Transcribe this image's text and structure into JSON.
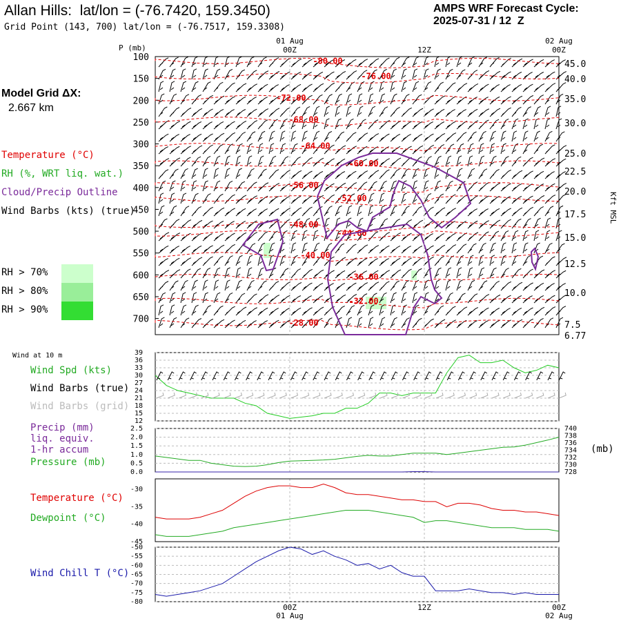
{
  "header": {
    "title": "Allan Hills:  lat/lon = (-76.7420, 159.3450)",
    "grid_point": "Grid Point (143, 700) lat/lon = (-76.7517, 159.3308)",
    "cycle_label": "AMPS WRF Forecast Cycle:",
    "cycle_value": "2025-07-31 / 12  Z"
  },
  "model": {
    "grid_label": "Model Grid ΔX:",
    "grid_value": "2.667 km"
  },
  "time_axis": {
    "top_dates": [
      "01 Aug",
      "02 Aug"
    ],
    "ticks": [
      "00Z",
      "12Z",
      "00Z"
    ],
    "bottom_dates": [
      "01 Aug",
      "02 Aug"
    ]
  },
  "legend": {
    "temperature": "Temperature (°C)",
    "rh": "RH (%, WRT liq. wat.)",
    "cloud": "Cloud/Precip Outline",
    "wind": "Wind Barbs (kts) (true)",
    "rh70": "RH > 70%",
    "rh80": "RH > 80%",
    "rh90": "RH > 90%",
    "colors": {
      "temp": "#e00000",
      "rh": "#22aa22",
      "cloud": "#7a2a9a",
      "rh70": "#ccffcc",
      "rh80": "#99ee99",
      "rh90": "#33dd33"
    }
  },
  "panels": {
    "wind10m_title": "Wind at 10 m",
    "wind_spd": "Wind Spd (kts)",
    "wind_barbs_true": "Wind Barbs (true)",
    "wind_barbs_grid": "Wind Barbs (grid)",
    "precip": "Precip (mm)",
    "precip2": "liq. equiv.",
    "precip3": "1-hr accum",
    "pressure": "Pressure (mb)",
    "pressure_unit": "(mb)",
    "temp": "Temperature (°C)",
    "dew": "Dewpoint (°C)",
    "windchill": "Wind Chill T (°C)"
  },
  "chart_data": [
    {
      "type": "heatmap",
      "name_ref": "vertical cross-section",
      "ylabel": "P (mb)",
      "ylabel_right": "Kft MSL",
      "p_ticks": [
        100,
        150,
        200,
        250,
        300,
        350,
        400,
        450,
        500,
        550,
        600,
        650,
        700
      ],
      "kft_ticks": [
        "45.0",
        "40.0",
        "35.0",
        "30.0",
        "25.0",
        "22.5",
        "20.0",
        "17.5",
        "15.0",
        "12.5",
        "10.0",
        "7.5",
        "6.77"
      ],
      "temperature_contours": [
        {
          "label": "-80.00",
          "p": 110
        },
        {
          "label": "-76.00",
          "p": 145
        },
        {
          "label": "-72.00",
          "p": 195
        },
        {
          "label": "-68.00",
          "p": 245
        },
        {
          "label": "-64.00",
          "p": 305
        },
        {
          "label": "-60.00",
          "p": 345
        },
        {
          "label": "-56.00",
          "p": 395
        },
        {
          "label": "-52.00",
          "p": 425
        },
        {
          "label": "-48.00",
          "p": 485
        },
        {
          "label": "-44.00",
          "p": 505
        },
        {
          "label": "-40.00",
          "p": 555
        },
        {
          "label": "-36.00",
          "p": 605
        },
        {
          "label": "-32.00",
          "p": 660
        },
        {
          "label": "-28.00",
          "p": 710
        }
      ]
    },
    {
      "type": "line",
      "name_ref": "wind speed 10m",
      "ylim": [
        12,
        39
      ],
      "yticks": [
        12,
        15,
        18,
        21,
        24,
        27,
        30,
        33,
        36,
        39
      ],
      "x": [
        -12,
        -11,
        -10,
        -9,
        -8,
        -7,
        -6,
        -5,
        -4,
        -3,
        -2,
        -1,
        0,
        1,
        2,
        3,
        4,
        5,
        6,
        7,
        8,
        9,
        10,
        11,
        12,
        13,
        14,
        15,
        16,
        17,
        18,
        19,
        20,
        21,
        22,
        23,
        24
      ],
      "series": [
        {
          "values": [
            30,
            26,
            24,
            23,
            22,
            21,
            21,
            21,
            19,
            18,
            15,
            14,
            13,
            13.5,
            14,
            15,
            15,
            17,
            17,
            19,
            23,
            23,
            22,
            23,
            23,
            23,
            31,
            37,
            38,
            35,
            35,
            36,
            33,
            31,
            32,
            34,
            33
          ]
        }
      ]
    },
    {
      "type": "line",
      "name_ref": "precip and pressure",
      "ylim": [
        0,
        2.5
      ],
      "yticks": [
        "0.0",
        "0.5",
        "1.0",
        "1.5",
        "2.0",
        "2.5"
      ],
      "yticks_right": [
        728,
        730,
        732,
        734,
        736,
        738,
        740
      ],
      "pressure_ylim": [
        728,
        740
      ],
      "x": [
        -12,
        -11,
        -10,
        -9,
        -8,
        -7,
        -6,
        -5,
        -4,
        -3,
        -2,
        -1,
        0,
        1,
        2,
        3,
        4,
        5,
        6,
        7,
        8,
        9,
        10,
        11,
        12,
        13,
        14,
        15,
        16,
        17,
        18,
        19,
        20,
        21,
        22,
        23,
        24
      ],
      "series": [
        {
          "values": [
            732.4,
            732.0,
            731.6,
            731.2,
            731.2,
            730.4,
            730.0,
            729.6,
            729.5,
            729.6,
            730.0,
            730.6,
            731.0,
            731.1,
            731.2,
            731.3,
            731.5,
            731.9,
            732.3,
            732.6,
            732.4,
            732.4,
            732.8,
            733.2,
            733.2,
            733.2,
            732.8,
            733.2,
            733.6,
            734.0,
            734.4,
            734.8,
            734.9,
            735.4,
            736.1,
            736.8,
            737.6
          ]
        },
        {
          "values": [
            0,
            0,
            0,
            0,
            0,
            0,
            0,
            0,
            0,
            0,
            0,
            0,
            0,
            0,
            0,
            0,
            0,
            0,
            0,
            0,
            0,
            0,
            0,
            0.02,
            0.02,
            0,
            0,
            0,
            0,
            0,
            0,
            0,
            0,
            0,
            0,
            0,
            0
          ]
        }
      ]
    },
    {
      "type": "line",
      "name_ref": "temperature and dewpoint",
      "ylim": [
        -45,
        -27
      ],
      "yticks": [
        -30,
        -35,
        -40,
        -45
      ],
      "x": [
        -12,
        -11,
        -10,
        -9,
        -8,
        -7,
        -6,
        -5,
        -4,
        -3,
        -2,
        -1,
        0,
        1,
        2,
        3,
        4,
        5,
        6,
        7,
        8,
        9,
        10,
        11,
        12,
        13,
        14,
        15,
        16,
        17,
        18,
        19,
        20,
        21,
        22,
        23,
        24
      ],
      "series": [
        {
          "values": [
            -38,
            -38.5,
            -38.5,
            -38.5,
            -38,
            -37,
            -36,
            -34,
            -32,
            -30.5,
            -29.5,
            -29,
            -29,
            -29.5,
            -29.5,
            -28.5,
            -29.5,
            -31,
            -31.5,
            -31.5,
            -32,
            -32.5,
            -33,
            -33,
            -33.5,
            -33.5,
            -35,
            -34,
            -34,
            -34.5,
            -35.5,
            -36,
            -36,
            -36.5,
            -36.5,
            -37,
            -37.5
          ]
        },
        {
          "values": [
            -43,
            -43.5,
            -43.5,
            -43.5,
            -43,
            -42.5,
            -42,
            -41,
            -40.5,
            -40,
            -39.5,
            -39,
            -38.5,
            -38,
            -37.5,
            -37,
            -36.5,
            -36,
            -36,
            -36,
            -36.5,
            -37,
            -37.5,
            -38,
            -39.5,
            -39,
            -39,
            -39.5,
            -40,
            -40.5,
            -41,
            -41,
            -41,
            -41.5,
            -41.5,
            -41.5,
            -42
          ]
        }
      ]
    },
    {
      "type": "line",
      "name_ref": "wind chill",
      "ylim": [
        -80,
        -50
      ],
      "yticks": [
        -50,
        -55,
        -60,
        -65,
        -70,
        -75,
        -80
      ],
      "x": [
        -12,
        -11,
        -10,
        -9,
        -8,
        -7,
        -6,
        -5,
        -4,
        -3,
        -2,
        -1,
        0,
        1,
        2,
        3,
        4,
        5,
        6,
        7,
        8,
        9,
        10,
        11,
        12,
        13,
        14,
        15,
        16,
        17,
        18,
        19,
        20,
        21,
        22,
        23,
        24
      ],
      "series": [
        {
          "values": [
            -76,
            -77,
            -76,
            -75,
            -74,
            -72,
            -70,
            -66,
            -62,
            -58,
            -55,
            -52,
            -50,
            -51,
            -54,
            -52,
            -55,
            -57,
            -60,
            -59,
            -62,
            -60,
            -64,
            -66,
            -66,
            -74,
            -74,
            -74,
            -73,
            -74,
            -75,
            -75,
            -76,
            -75,
            -76,
            -76,
            -76
          ]
        }
      ]
    }
  ]
}
